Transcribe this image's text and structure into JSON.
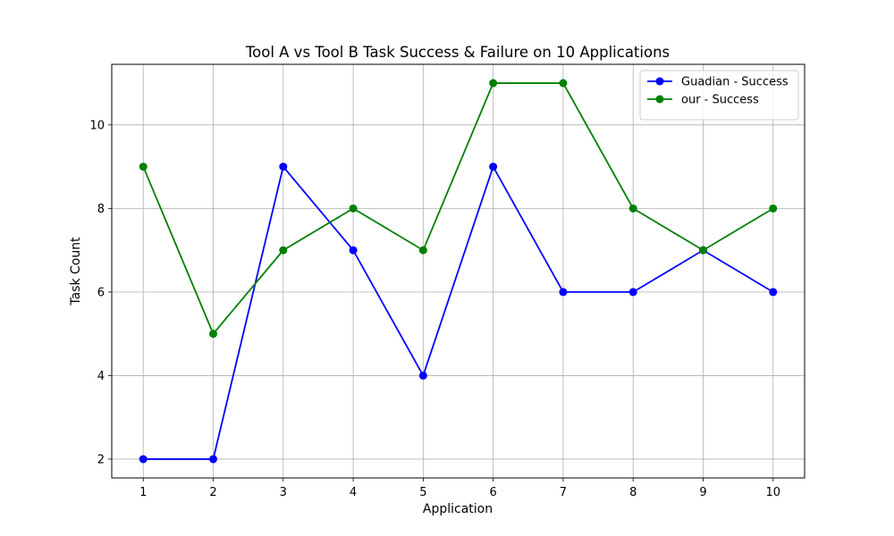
{
  "chart_data": {
    "type": "line",
    "title": "Tool A vs Tool B Task Success & Failure on 10 Applications",
    "xlabel": "Application",
    "ylabel": "Task Count",
    "x": [
      1,
      2,
      3,
      4,
      5,
      6,
      7,
      8,
      9,
      10
    ],
    "x_ticks": [
      "1",
      "2",
      "3",
      "4",
      "5",
      "6",
      "7",
      "8",
      "9",
      "10"
    ],
    "y_ticks": [
      "2",
      "4",
      "6",
      "8",
      "10"
    ],
    "xlim": [
      0.55,
      10.45
    ],
    "ylim": [
      1.55,
      11.45
    ],
    "grid": true,
    "legend_position": "top-right",
    "series": [
      {
        "name": "Guadian - Success",
        "color": "#0000ff",
        "marker": "circle",
        "values": [
          2,
          2,
          9,
          7,
          4,
          9,
          6,
          6,
          7,
          6
        ]
      },
      {
        "name": "our - Success",
        "color": "#008000",
        "marker": "circle",
        "values": [
          9,
          5,
          7,
          8,
          7,
          11,
          11,
          8,
          7,
          8
        ]
      }
    ]
  }
}
